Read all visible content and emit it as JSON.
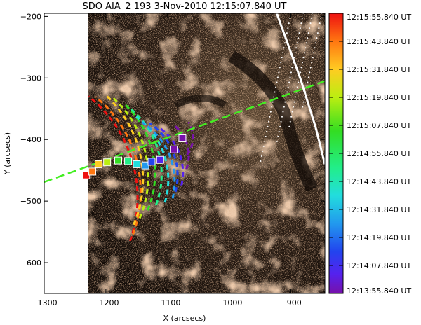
{
  "chart_data": {
    "type": "scatter",
    "title": "SDO AIA_2 193   3-Nov-2010 12:15:07.840 UT",
    "xlabel": "X (arcsecs)",
    "ylabel": "Y (arcsecs)",
    "xlim": [
      -1300,
      -845
    ],
    "ylim": [
      -650,
      -195
    ],
    "x_ticks": [
      -1300,
      -1200,
      -1100,
      -1000,
      -900
    ],
    "y_ticks": [
      -200,
      -300,
      -400,
      -500,
      -600
    ],
    "x_tick_labels": [
      "−1300",
      "−1200",
      "−1100",
      "−1000",
      "−900"
    ],
    "y_tick_labels": [
      "−200",
      "−300",
      "−400",
      "−500",
      "−600"
    ],
    "image_left_edge_x": -1228,
    "fit_line": {
      "x": [
        -1300,
        -845
      ],
      "y": [
        -469,
        -305
      ],
      "color": "#44ee22"
    },
    "limb": {
      "x": [
        -923,
        -885,
        -860,
        -845
      ],
      "y": [
        -195,
        -300,
        -380,
        -440
      ]
    },
    "colorbar": {
      "labels": [
        "12:15:55.840  UT",
        "12:15:43.840  UT",
        "12:15:31.840  UT",
        "12:15:19.840  UT",
        "12:15:07.840  UT",
        "12:14:55.840  UT",
        "12:14:43.840  UT",
        "12:14:31.840  UT",
        "12:14:19.840  UT",
        "12:14:07.840  UT",
        "12:13:55.840  UT"
      ],
      "colors": [
        "#ee1111",
        "#ff7711",
        "#ffcc22",
        "#bbee11",
        "#33dd22",
        "#22ee88",
        "#22dddd",
        "#2299ee",
        "#2244ee",
        "#5522ee",
        "#7711aa"
      ]
    },
    "fronts": {
      "points": [
        {
          "time": "12:15:55.840 UT",
          "x": -1232,
          "y": -458
        },
        {
          "time": "12:15:43.840 UT",
          "x": -1222,
          "y": -452
        },
        {
          "time": "12:15:31.840 UT",
          "x": -1212,
          "y": -440
        },
        {
          "time": "12:15:19.840 UT",
          "x": -1198,
          "y": -437
        },
        {
          "time": "12:15:07.840 UT",
          "x": -1180,
          "y": -434
        },
        {
          "time": "12:14:55.840 UT",
          "x": -1164,
          "y": -435
        },
        {
          "time": "12:14:43.840 UT",
          "x": -1150,
          "y": -440
        },
        {
          "time": "12:14:31.840 UT",
          "x": -1136,
          "y": -442
        },
        {
          "time": "12:14:19.840 UT",
          "x": -1126,
          "y": -436
        },
        {
          "time": "12:14:07.840 UT",
          "x": -1112,
          "y": -433
        },
        {
          "time": "12:13:55.840 UT",
          "x": -1090,
          "y": -416
        },
        {
          "time": "12:13:55.840 UT",
          "x": -1076,
          "y": -398
        }
      ]
    }
  }
}
